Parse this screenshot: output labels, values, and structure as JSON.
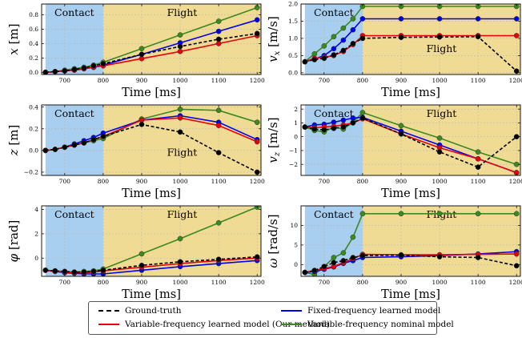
{
  "legend": [
    {
      "label": "Ground-truth",
      "color": "#000000",
      "dashed": true
    },
    {
      "label": "Variable-frequency learned model (Our method)",
      "color": "#e8000b",
      "dashed": false
    },
    {
      "label": "Fixed-frequency learned model",
      "color": "#0000ee",
      "dashed": false
    },
    {
      "label": "Variable-frequency nominal model",
      "color": "#3a8a1e",
      "dashed": false
    }
  ],
  "regions": {
    "contact_label": "Contact",
    "flight_label": "Flight",
    "contact_color": "#a9cff0",
    "flight_color": "#f0db95"
  },
  "chart_data": [
    {
      "type": "line",
      "xlabel": "Time [ms]",
      "ylabel": "x [m]",
      "ylabel_main": "x",
      "ylabel_sub": "",
      "ylabel_unit": "[m]",
      "xlim": [
        640,
        1210
      ],
      "ylim": [
        -0.03,
        0.95
      ],
      "contact_range": [
        650,
        800
      ],
      "x_ticks": [
        700,
        800,
        900,
        1000,
        1100,
        1200
      ],
      "y_ticks": [
        0.0,
        0.2,
        0.4,
        0.6,
        0.8
      ],
      "y_tick_labels": [
        "0.0",
        "0.2",
        "0.4",
        "0.6",
        "0.8"
      ],
      "contact_label_pos": "top",
      "flight_label_pos": "top",
      "x": [
        650,
        675,
        700,
        725,
        750,
        775,
        800,
        900,
        1000,
        1100,
        1200
      ],
      "series": [
        {
          "name": "Ground-truth",
          "values": [
            0.0,
            0.01,
            0.02,
            0.04,
            0.06,
            0.09,
            0.12,
            0.25,
            0.36,
            0.46,
            0.54
          ]
        },
        {
          "name": "Variable-frequency learned model (Our method)",
          "values": [
            0.0,
            0.01,
            0.02,
            0.03,
            0.05,
            0.07,
            0.09,
            0.19,
            0.29,
            0.4,
            0.51
          ]
        },
        {
          "name": "Fixed-frequency learned model",
          "values": [
            0.0,
            0.01,
            0.02,
            0.03,
            0.05,
            0.07,
            0.1,
            0.25,
            0.41,
            0.57,
            0.73
          ]
        },
        {
          "name": "Variable-frequency nominal model",
          "values": [
            0.0,
            0.01,
            0.03,
            0.05,
            0.07,
            0.1,
            0.14,
            0.33,
            0.52,
            0.71,
            0.9
          ]
        }
      ]
    },
    {
      "type": "line",
      "xlabel": "Time [ms]",
      "ylabel": "v_x [m/s]",
      "ylabel_main": "v",
      "ylabel_sub": "x",
      "ylabel_unit": "[m/s]",
      "xlim": [
        640,
        1210
      ],
      "ylim": [
        -0.05,
        2.0
      ],
      "contact_range": [
        650,
        800
      ],
      "x_ticks": [
        700,
        800,
        900,
        1000,
        1100,
        1200
      ],
      "y_ticks": [
        0.0,
        0.5,
        1.0,
        1.5,
        2.0
      ],
      "y_tick_labels": [
        "0.0",
        "0.5",
        "1.0",
        "1.5",
        "2.0"
      ],
      "contact_label_pos": "top",
      "flight_label_pos": "middle",
      "x": [
        650,
        675,
        700,
        725,
        750,
        775,
        800,
        900,
        1000,
        1100,
        1200
      ],
      "series": [
        {
          "name": "Ground-truth",
          "values": [
            0.32,
            0.38,
            0.42,
            0.52,
            0.65,
            0.85,
            1.0,
            1.03,
            1.04,
            1.05,
            0.05
          ]
        },
        {
          "name": "Variable-frequency learned model (Our method)",
          "values": [
            0.32,
            0.42,
            0.45,
            0.5,
            0.62,
            0.82,
            1.08,
            1.08,
            1.08,
            1.08,
            1.08
          ]
        },
        {
          "name": "Fixed-frequency learned model",
          "values": [
            0.32,
            0.4,
            0.5,
            0.7,
            0.95,
            1.25,
            1.57,
            1.57,
            1.57,
            1.57,
            1.57
          ]
        },
        {
          "name": "Variable-frequency nominal model",
          "values": [
            0.32,
            0.55,
            0.78,
            1.05,
            1.3,
            1.57,
            1.93,
            1.93,
            1.93,
            1.93,
            1.93
          ]
        }
      ]
    },
    {
      "type": "line",
      "xlabel": "Time [ms]",
      "ylabel": "z [m]",
      "ylabel_main": "z",
      "ylabel_sub": "",
      "ylabel_unit": "[m]",
      "xlim": [
        640,
        1210
      ],
      "ylim": [
        -0.23,
        0.42
      ],
      "contact_range": [
        650,
        800
      ],
      "x_ticks": [
        700,
        800,
        900,
        1000,
        1100,
        1200
      ],
      "y_ticks": [
        -0.2,
        0.0,
        0.2,
        0.4
      ],
      "y_tick_labels": [
        "−0.2",
        "0.0",
        "0.2",
        "0.4"
      ],
      "contact_label_pos": "top",
      "flight_label_pos": "bottom",
      "x": [
        650,
        675,
        700,
        725,
        750,
        775,
        800,
        900,
        1000,
        1100,
        1200
      ],
      "series": [
        {
          "name": "Ground-truth",
          "values": [
            0.0,
            0.01,
            0.03,
            0.05,
            0.07,
            0.1,
            0.13,
            0.24,
            0.17,
            -0.02,
            -0.2
          ]
        },
        {
          "name": "Variable-frequency learned model (Our method)",
          "values": [
            0.0,
            0.01,
            0.03,
            0.05,
            0.07,
            0.1,
            0.13,
            0.28,
            0.3,
            0.23,
            0.08
          ]
        },
        {
          "name": "Fixed-frequency learned model",
          "values": [
            0.0,
            0.01,
            0.03,
            0.06,
            0.09,
            0.12,
            0.16,
            0.28,
            0.32,
            0.26,
            0.1
          ]
        },
        {
          "name": "Variable-frequency nominal model",
          "values": [
            0.0,
            0.01,
            0.03,
            0.05,
            0.07,
            0.09,
            0.11,
            0.29,
            0.38,
            0.37,
            0.26
          ]
        }
      ]
    },
    {
      "type": "line",
      "xlabel": "Time [ms]",
      "ylabel": "v_z [m/s]",
      "ylabel_main": "v",
      "ylabel_sub": "z",
      "ylabel_unit": "[m/s]",
      "xlim": [
        640,
        1210
      ],
      "ylim": [
        -2.8,
        2.3
      ],
      "contact_range": [
        650,
        800
      ],
      "x_ticks": [
        700,
        800,
        900,
        1000,
        1100,
        1200
      ],
      "y_ticks": [
        -2,
        -1,
        0,
        1,
        2
      ],
      "y_tick_labels": [
        "−2",
        "−1",
        "0",
        "1",
        "2"
      ],
      "contact_label_pos": "top",
      "flight_label_pos": "top",
      "x": [
        650,
        675,
        700,
        725,
        750,
        775,
        800,
        900,
        1000,
        1100,
        1200
      ],
      "series": [
        {
          "name": "Ground-truth",
          "values": [
            0.7,
            0.55,
            0.5,
            0.6,
            0.7,
            1.0,
            1.35,
            0.2,
            -1.1,
            -2.2,
            0.0
          ]
        },
        {
          "name": "Variable-frequency learned model (Our method)",
          "values": [
            0.7,
            0.65,
            0.7,
            0.75,
            0.85,
            1.0,
            1.3,
            0.2,
            -0.8,
            -1.6,
            -2.6
          ]
        },
        {
          "name": "Fixed-frequency learned model",
          "values": [
            0.7,
            0.85,
            0.9,
            1.05,
            1.2,
            1.35,
            1.4,
            0.4,
            -0.6,
            -1.6,
            -2.6
          ]
        },
        {
          "name": "Variable-frequency nominal model",
          "values": [
            0.7,
            0.45,
            0.35,
            0.7,
            0.55,
            1.05,
            1.75,
            0.8,
            -0.1,
            -1.1,
            -2.0
          ]
        }
      ]
    },
    {
      "type": "line",
      "xlabel": "Time [ms]",
      "ylabel": "φ [rad]",
      "ylabel_main": "φ",
      "ylabel_sub": "",
      "ylabel_unit": "[rad]",
      "xlim": [
        640,
        1210
      ],
      "ylim": [
        -1.5,
        4.3
      ],
      "contact_range": [
        650,
        800
      ],
      "x_ticks": [
        700,
        800,
        900,
        1000,
        1100,
        1200
      ],
      "y_ticks": [
        0,
        2,
        4
      ],
      "y_tick_labels": [
        "0",
        "2",
        "4"
      ],
      "contact_label_pos": "top",
      "flight_label_pos": "top",
      "x": [
        650,
        675,
        700,
        725,
        750,
        775,
        800,
        900,
        1000,
        1100,
        1200
      ],
      "series": [
        {
          "name": "Ground-truth",
          "values": [
            -1.0,
            -1.05,
            -1.1,
            -1.15,
            -1.15,
            -1.1,
            -1.0,
            -0.6,
            -0.3,
            -0.1,
            0.1
          ]
        },
        {
          "name": "Variable-frequency learned model (Our method)",
          "values": [
            -1.0,
            -1.1,
            -1.15,
            -1.2,
            -1.2,
            -1.15,
            -1.05,
            -0.75,
            -0.45,
            -0.2,
            -0.0
          ]
        },
        {
          "name": "Fixed-frequency learned model",
          "values": [
            -1.0,
            -1.1,
            -1.2,
            -1.25,
            -1.3,
            -1.3,
            -1.3,
            -1.0,
            -0.7,
            -0.45,
            -0.2
          ]
        },
        {
          "name": "Variable-frequency nominal model",
          "values": [
            -1.0,
            -1.05,
            -1.1,
            -1.15,
            -1.1,
            -1.05,
            -0.9,
            0.35,
            1.6,
            2.9,
            4.2
          ]
        }
      ]
    },
    {
      "type": "line",
      "xlabel": "Time [ms]",
      "ylabel": "ω [rad/s]",
      "ylabel_main": "ω",
      "ylabel_sub": "",
      "ylabel_unit": "[rad/s]",
      "xlim": [
        640,
        1210
      ],
      "ylim": [
        -3.0,
        15.0
      ],
      "contact_range": [
        650,
        800
      ],
      "x_ticks": [
        700,
        800,
        900,
        1000,
        1100,
        1200
      ],
      "y_ticks": [
        0,
        5,
        10
      ],
      "y_tick_labels": [
        "0",
        "5",
        "10"
      ],
      "contact_label_pos": "top",
      "flight_label_pos": "top",
      "x": [
        650,
        675,
        700,
        725,
        750,
        775,
        800,
        900,
        1000,
        1100,
        1200
      ],
      "series": [
        {
          "name": "Ground-truth",
          "values": [
            -2.0,
            -1.5,
            -0.5,
            0.5,
            1.0,
            1.8,
            2.3,
            2.4,
            2.0,
            1.8,
            -0.3
          ]
        },
        {
          "name": "Variable-frequency learned model (Our method)",
          "values": [
            -2.0,
            -1.5,
            -1.0,
            -0.5,
            0.5,
            1.5,
            2.6,
            2.5,
            2.5,
            2.6,
            2.7
          ]
        },
        {
          "name": "Fixed-frequency learned model",
          "values": [
            -2.0,
            -1.8,
            -1.2,
            -0.6,
            0.3,
            1.0,
            1.8,
            2.0,
            2.3,
            2.7,
            3.3
          ]
        },
        {
          "name": "Variable-frequency nominal model",
          "values": [
            -2.0,
            -2.5,
            -0.5,
            1.8,
            3.0,
            7.0,
            13.0,
            13.0,
            13.0,
            13.0,
            13.0
          ]
        }
      ]
    }
  ]
}
